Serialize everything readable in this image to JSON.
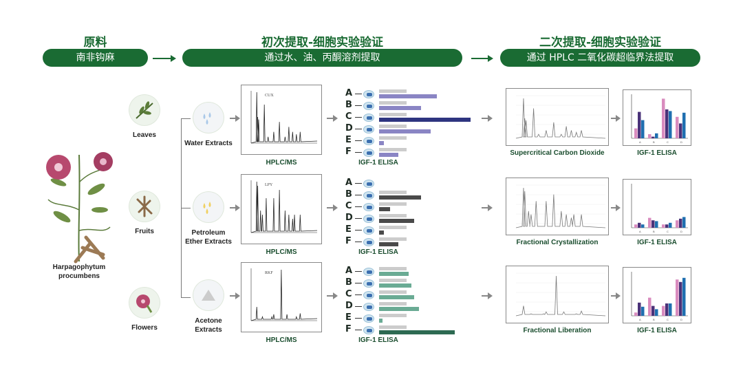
{
  "header": {
    "sections": [
      {
        "title": "原料",
        "pill": "南非钩麻"
      },
      {
        "title": "初次提取-细胞实验验证",
        "pill": "通过水、油、丙酮溶剂提取"
      },
      {
        "title": "二次提取-细胞实验验证",
        "pill": "通过 HPLC 二氧化碳超临界法提取"
      }
    ]
  },
  "plant": {
    "name": "Harpagophytum procumbens",
    "parts": [
      "Leaves",
      "Fruits",
      "Flowers"
    ]
  },
  "rows": [
    {
      "extract": "Water Extracts",
      "hplc_label": "HPLC/MS",
      "hplc_tag": "CUX",
      "elisa_label": "IGF-1 ELISA",
      "bar_color": "#8a85c4",
      "highlight_color": "#2e3580",
      "highlight": "C",
      "elisa": {
        "A": 84,
        "B": 61,
        "C": 133,
        "D": 75,
        "E": 7,
        "F": 28
      },
      "peaks": [
        [
          3,
          0.1
        ],
        [
          3.5,
          0.05
        ],
        [
          4,
          0.045
        ],
        [
          7,
          0.075
        ],
        [
          9,
          0.01
        ],
        [
          12,
          0.02
        ],
        [
          15,
          0.04
        ],
        [
          18,
          0.01
        ],
        [
          20,
          0.03
        ],
        [
          22,
          0.02
        ],
        [
          24,
          0.015
        ],
        [
          26,
          0.02
        ]
      ],
      "method": "Supercritical Carbon Dioxide",
      "method_elisa": "IGF-1 ELISA",
      "groups": [
        "A",
        "B",
        "C",
        "D"
      ],
      "series": [
        [
          0.6,
          0.25,
          2.4,
          1.3
        ],
        [
          1.6,
          0.1,
          1.75,
          0.9
        ],
        [
          1.1,
          0.3,
          1.65,
          1.55
        ]
      ]
    },
    {
      "extract": "Petroleum Ether Extracts",
      "hplc_label": "HPLC/MS",
      "hplc_tag": "LPY",
      "elisa_label": "IGF-1 ELISA",
      "bar_color": "#4a4a4a",
      "highlight_color": "#4a4a4a",
      "highlight": "",
      "elisa": {
        "A": 0,
        "B": 61,
        "C": 16,
        "D": 51,
        "E": 7,
        "F": 28
      },
      "peaks": [
        [
          3,
          0.06
        ],
        [
          3.5,
          0.055
        ],
        [
          5,
          0.025
        ],
        [
          6,
          0.02
        ],
        [
          8,
          0.04
        ],
        [
          12,
          0.04
        ],
        [
          15,
          0.05
        ],
        [
          18,
          0.025
        ],
        [
          20,
          0.02
        ],
        [
          22,
          0.015
        ],
        [
          23,
          0.02
        ],
        [
          26,
          0.02
        ]
      ],
      "method": "Fractional Crystallization",
      "method_elisa": "IGF-1 ELISA",
      "groups": [
        "A",
        "B",
        "C",
        "D"
      ],
      "series": [
        [
          0.2,
          0.6,
          0.2,
          0.45
        ],
        [
          0.3,
          0.45,
          0.2,
          0.55
        ],
        [
          0.2,
          0.4,
          0.3,
          0.65
        ]
      ]
    },
    {
      "extract": "Acetone Extracts",
      "hplc_label": "HPLC/MS",
      "hplc_tag": "RKF",
      "elisa_label": "IGF-1 ELISA",
      "bar_color": "#6aab94",
      "highlight_color": "#2d6a52",
      "highlight": "F",
      "elisa": {
        "A": 43,
        "B": 47,
        "C": 51,
        "D": 58,
        "E": 5,
        "F": 110
      },
      "peaks": [
        [
          3,
          0.025
        ],
        [
          6,
          0.005
        ],
        [
          11,
          0.005
        ],
        [
          12,
          0.01
        ],
        [
          16,
          0.1
        ],
        [
          19,
          0.01
        ],
        [
          24,
          0.005
        ],
        [
          26,
          0.012
        ]
      ],
      "method": "Fractional Liberation",
      "method_elisa": "IGF-1 ELISA",
      "groups": [
        "A",
        "B",
        "C",
        "D"
      ],
      "series": [
        [
          0.2,
          1.1,
          0.6,
          2.2
        ],
        [
          0.8,
          0.6,
          0.75,
          2.05
        ],
        [
          0.55,
          0.4,
          0.75,
          2.3
        ]
      ]
    }
  ],
  "letters": [
    "A",
    "B",
    "C",
    "D",
    "E",
    "F"
  ],
  "series_colors": [
    "#d98cbf",
    "#4a3278",
    "#1f6fb0"
  ],
  "accent": "#1a6b33"
}
